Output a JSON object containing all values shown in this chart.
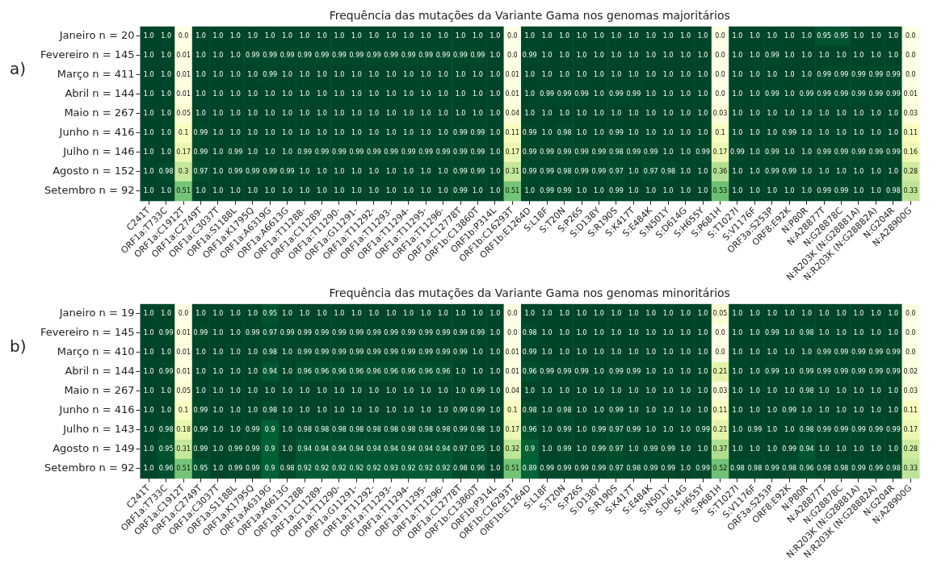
{
  "chart_data": [
    {
      "type": "heatmap",
      "title": "Frequência das mutações da Variante Gama nos genomas majoritários",
      "annotations": [
        "a)"
      ],
      "categories": [
        "C241T",
        "ORF1a:T733C",
        "ORF1a:C1912T",
        "ORF1a:C2749T",
        "ORF1a:C3037T",
        "ORF1a:S1188L",
        "ORF1a:K1795Q",
        "ORF1a:A6319G",
        "ORF1a:A6613G",
        "ORF1a:T11288-",
        "ORF1a:C11289-",
        "ORF1a:T11290-",
        "ORF1a:G11291-",
        "ORF1a:T11292-",
        "ORF1a:T11293-",
        "ORF1a:T11294-",
        "ORF1a:T11295-",
        "ORF1a:T11296-",
        "ORF1a:C12778T",
        "ORF1b:C13860T",
        "ORF1b:P314L",
        "ORF1b:C16293T",
        "ORF1b:E1264D",
        "S:L18F",
        "S:T20N",
        "S:P26S",
        "S:D138Y",
        "S:R190S",
        "S:K417T",
        "S:E484K",
        "S:N501Y",
        "S:D614G",
        "S:H655Y",
        "S:P681H",
        "S:T1027I",
        "S:V1176F",
        "ORF3a:S253P",
        "ORF8:E92K",
        "N:P80R",
        "N:A28877T",
        "N:G28878C",
        "N:R203K (N:G28881A)",
        "N:R203K (N:G28882A)",
        "N:G204R",
        "N:A28900G"
      ],
      "y_categories": [
        "Janeiro n = 20",
        "Fevereiro n = 145",
        "Março n = 411",
        "Abril n = 144",
        "Maio n = 267",
        "Junho n = 416",
        "Julho n = 146",
        "Agosto n = 152",
        "Setembro n = 92"
      ],
      "cells": [
        [
          1,
          1,
          0,
          1,
          1,
          1,
          1,
          1,
          1,
          1,
          1,
          1,
          1,
          1,
          1,
          1,
          1,
          1,
          1,
          1,
          1,
          0,
          1,
          1,
          1,
          1,
          1,
          1,
          1,
          1,
          1,
          1,
          1,
          0,
          1,
          1,
          1,
          1,
          1,
          0.95,
          0.95,
          1,
          1,
          1,
          0
        ],
        [
          1,
          1,
          0.01,
          1,
          1,
          1,
          0.99,
          0.99,
          0.99,
          0.99,
          0.99,
          0.99,
          0.99,
          0.99,
          0.99,
          0.99,
          0.99,
          0.99,
          0.99,
          0.99,
          1,
          0,
          0.99,
          1,
          1,
          1,
          1,
          1,
          1,
          1,
          1,
          1,
          1,
          0,
          1,
          1,
          0.99,
          1,
          1,
          1,
          1,
          1,
          1,
          1,
          0
        ],
        [
          1,
          1,
          0.01,
          1,
          1,
          1,
          1,
          0.99,
          1,
          1,
          1,
          1,
          1,
          1,
          1,
          1,
          1,
          1,
          1,
          1,
          1,
          0.01,
          1,
          1,
          1,
          1,
          1,
          1,
          1,
          1,
          1,
          1,
          1,
          0,
          1,
          1,
          1,
          1,
          1,
          0.99,
          0.99,
          0.99,
          0.99,
          0.99,
          0
        ],
        [
          1,
          1,
          0.01,
          1,
          1,
          1,
          1,
          1,
          1,
          1,
          1,
          1,
          1,
          1,
          1,
          1,
          1,
          1,
          1,
          1,
          1,
          0.01,
          1,
          0.99,
          0.99,
          0.99,
          1,
          0.99,
          0.99,
          1,
          1,
          1,
          1,
          0,
          1,
          1,
          0.99,
          1,
          0.99,
          0.99,
          0.99,
          0.99,
          0.99,
          0.99,
          0.01
        ],
        [
          1,
          1,
          0.05,
          1,
          1,
          1,
          1,
          1,
          1,
          1,
          1,
          1,
          1,
          1,
          1,
          1,
          1,
          1,
          1,
          1,
          1,
          0.04,
          1,
          1,
          1,
          1,
          1,
          1,
          1,
          1,
          1,
          1,
          1,
          0.03,
          1,
          1,
          1,
          1,
          1,
          1,
          1,
          1,
          1,
          1,
          0.03
        ],
        [
          1,
          1,
          0.1,
          0.99,
          1,
          1,
          1,
          1,
          1,
          1,
          1,
          1,
          1,
          1,
          1,
          1,
          1,
          1,
          0.99,
          0.99,
          1,
          0.11,
          0.99,
          1,
          0.98,
          1,
          1,
          0.99,
          1,
          1,
          1,
          1,
          1,
          0.1,
          1,
          1,
          1,
          0.99,
          1,
          1,
          1,
          1,
          1,
          1,
          0.11
        ],
        [
          1,
          1,
          0.17,
          0.99,
          1,
          0.99,
          1,
          1,
          1,
          0.99,
          0.99,
          0.99,
          0.99,
          0.99,
          0.99,
          0.99,
          0.99,
          0.99,
          0.99,
          0.99,
          1,
          0.17,
          0.99,
          0.99,
          0.99,
          0.99,
          0.99,
          0.98,
          0.99,
          0.99,
          1,
          1,
          0.99,
          0.17,
          0.99,
          1,
          0.99,
          1,
          1,
          0.99,
          0.99,
          0.99,
          0.99,
          0.99,
          0.16
        ],
        [
          1,
          0.98,
          0.3,
          0.97,
          1,
          0.99,
          0.99,
          0.99,
          0.99,
          1,
          1,
          1,
          1,
          1,
          1,
          1,
          1,
          1,
          0.99,
          0.99,
          1,
          0.31,
          0.99,
          0.99,
          0.98,
          0.99,
          0.99,
          0.97,
          1,
          0.97,
          0.98,
          1,
          1,
          0.36,
          1,
          1,
          0.99,
          0.99,
          1,
          1,
          1,
          1,
          1,
          1,
          0.28
        ],
        [
          1,
          1,
          0.51,
          1,
          1,
          1,
          1,
          1,
          1,
          1,
          1,
          1,
          1,
          1,
          1,
          1,
          1,
          1,
          0.99,
          1,
          1,
          0.51,
          1,
          0.99,
          0.99,
          1,
          1,
          0.99,
          1,
          1,
          1,
          1,
          1,
          0.53,
          1,
          1,
          1,
          1,
          1,
          0.99,
          0.99,
          1,
          1,
          0.98,
          0.33
        ]
      ],
      "cell_labels": [
        [
          "1.0",
          "1.0",
          "0.0",
          "1.0",
          "1.0",
          "1.0",
          "1.0",
          "1.0",
          "1.0",
          "1.0",
          "1.0",
          "1.0",
          "1.0",
          "1.0",
          "1.0",
          "1.0",
          "1.0",
          "1.0",
          "1.0",
          "1.0",
          "1.0",
          "0.0",
          "1.0",
          "1.0",
          "1.0",
          "1.0",
          "1.0",
          "1.0",
          "1.0",
          "1.0",
          "1.0",
          "1.0",
          "1.0",
          "0.0",
          "1.0",
          "1.0",
          "1.0",
          "1.0",
          "1.0",
          "0.95",
          "0.95",
          "1.0",
          "1.0",
          "1.0",
          "0.0"
        ],
        [
          "1.0",
          "1.0",
          "0.01",
          "1.0",
          "1.0",
          "1.0",
          "0.99",
          "0.99",
          "0.99",
          "0.99",
          "0.99",
          "0.99",
          "0.99",
          "0.99",
          "0.99",
          "0.99",
          "0.99",
          "0.99",
          "0.99",
          "0.99",
          "1.0",
          "0.0",
          "0.99",
          "1.0",
          "1.0",
          "1.0",
          "1.0",
          "1.0",
          "1.0",
          "1.0",
          "1.0",
          "1.0",
          "1.0",
          "0.0",
          "1.0",
          "1.0",
          "0.99",
          "1.0",
          "1.0",
          "1.0",
          "1.0",
          "1.0",
          "1.0",
          "1.0",
          "0.0"
        ],
        [
          "1.0",
          "1.0",
          "0.01",
          "1.0",
          "1.0",
          "1.0",
          "1.0",
          "0.99",
          "1.0",
          "1.0",
          "1.0",
          "1.0",
          "1.0",
          "1.0",
          "1.0",
          "1.0",
          "1.0",
          "1.0",
          "1.0",
          "1.0",
          "1.0",
          "0.01",
          "1.0",
          "1.0",
          "1.0",
          "1.0",
          "1.0",
          "1.0",
          "1.0",
          "1.0",
          "1.0",
          "1.0",
          "1.0",
          "0.0",
          "1.0",
          "1.0",
          "1.0",
          "1.0",
          "1.0",
          "0.99",
          "0.99",
          "0.99",
          "0.99",
          "0.99",
          "0.0"
        ],
        [
          "1.0",
          "1.0",
          "0.01",
          "1.0",
          "1.0",
          "1.0",
          "1.0",
          "1.0",
          "1.0",
          "1.0",
          "1.0",
          "1.0",
          "1.0",
          "1.0",
          "1.0",
          "1.0",
          "1.0",
          "1.0",
          "1.0",
          "1.0",
          "1.0",
          "0.01",
          "1.0",
          "0.99",
          "0.99",
          "0.99",
          "1.0",
          "0.99",
          "0.99",
          "1.0",
          "1.0",
          "1.0",
          "1.0",
          "0.0",
          "1.0",
          "1.0",
          "0.99",
          "1.0",
          "0.99",
          "0.99",
          "0.99",
          "0.99",
          "0.99",
          "0.99",
          "0.01"
        ],
        [
          "1.0",
          "1.0",
          "0.05",
          "1.0",
          "1.0",
          "1.0",
          "1.0",
          "1.0",
          "1.0",
          "1.0",
          "1.0",
          "1.0",
          "1.0",
          "1.0",
          "1.0",
          "1.0",
          "1.0",
          "1.0",
          "1.0",
          "1.0",
          "1.0",
          "0.04",
          "1.0",
          "1.0",
          "1.0",
          "1.0",
          "1.0",
          "1.0",
          "1.0",
          "1.0",
          "1.0",
          "1.0",
          "1.0",
          "0.03",
          "1.0",
          "1.0",
          "1.0",
          "1.0",
          "1.0",
          "1.0",
          "1.0",
          "1.0",
          "1.0",
          "1.0",
          "0.03"
        ],
        [
          "1.0",
          "1.0",
          "0.1",
          "0.99",
          "1.0",
          "1.0",
          "1.0",
          "1.0",
          "1.0",
          "1.0",
          "1.0",
          "1.0",
          "1.0",
          "1.0",
          "1.0",
          "1.0",
          "1.0",
          "1.0",
          "0.99",
          "0.99",
          "1.0",
          "0.11",
          "0.99",
          "1.0",
          "0.98",
          "1.0",
          "1.0",
          "0.99",
          "1.0",
          "1.0",
          "1.0",
          "1.0",
          "1.0",
          "0.1",
          "1.0",
          "1.0",
          "1.0",
          "0.99",
          "1.0",
          "1.0",
          "1.0",
          "1.0",
          "1.0",
          "1.0",
          "0.11"
        ],
        [
          "1.0",
          "1.0",
          "0.17",
          "0.99",
          "1.0",
          "0.99",
          "1.0",
          "1.0",
          "1.0",
          "0.99",
          "0.99",
          "0.99",
          "0.99",
          "0.99",
          "0.99",
          "0.99",
          "0.99",
          "0.99",
          "0.99",
          "0.99",
          "1.0",
          "0.17",
          "0.99",
          "0.99",
          "0.99",
          "0.99",
          "0.99",
          "0.98",
          "0.99",
          "0.99",
          "1.0",
          "1.0",
          "0.99",
          "0.17",
          "0.99",
          "1.0",
          "0.99",
          "1.0",
          "1.0",
          "0.99",
          "0.99",
          "0.99",
          "0.99",
          "0.99",
          "0.16"
        ],
        [
          "1.0",
          "0.98",
          "0.3",
          "0.97",
          "1.0",
          "0.99",
          "0.99",
          "0.99",
          "0.99",
          "1.0",
          "1.0",
          "1.0",
          "1.0",
          "1.0",
          "1.0",
          "1.0",
          "1.0",
          "1.0",
          "0.99",
          "0.99",
          "1.0",
          "0.31",
          "0.99",
          "0.99",
          "0.98",
          "0.99",
          "0.99",
          "0.97",
          "1.0",
          "0.97",
          "0.98",
          "1.0",
          "1.0",
          "0.36",
          "1.0",
          "1.0",
          "0.99",
          "0.99",
          "1.0",
          "1.0",
          "1.0",
          "1.0",
          "1.0",
          "1.0",
          "0.28"
        ],
        [
          "1.0",
          "1.0",
          "0.51",
          "1.0",
          "1.0",
          "1.0",
          "1.0",
          "1.0",
          "1.0",
          "1.0",
          "1.0",
          "1.0",
          "1.0",
          "1.0",
          "1.0",
          "1.0",
          "1.0",
          "1.0",
          "0.99",
          "1.0",
          "1.0",
          "0.51",
          "1.0",
          "0.99",
          "0.99",
          "1.0",
          "1.0",
          "0.99",
          "1.0",
          "1.0",
          "1.0",
          "1.0",
          "1.0",
          "0.53",
          "1.0",
          "1.0",
          "1.0",
          "1.0",
          "1.0",
          "0.99",
          "0.99",
          "1.0",
          "1.0",
          "0.98",
          "0.33"
        ]
      ]
    },
    {
      "type": "heatmap",
      "title": "Frequência das mutações da Variante Gama nos genomas minoritários",
      "annotations": [
        "b)"
      ],
      "categories": [
        "C241T",
        "ORF1a:T733C",
        "ORF1a:C1912T",
        "ORF1a:C2749T",
        "ORF1a:C3037T",
        "ORF1a:S1188L",
        "ORF1a:K1795Q",
        "ORF1a:A6319G",
        "ORF1a:A6613G",
        "ORF1a:T11288-",
        "ORF1a:C11289-",
        "ORF1a:T11290-",
        "ORF1a:G11291-",
        "ORF1a:T11292-",
        "ORF1a:T11293-",
        "ORF1a:T11294-",
        "ORF1a:T11295-",
        "ORF1a:T11296-",
        "ORF1a:C12778T",
        "ORF1b:C13860T",
        "ORF1b:P314L",
        "ORF1b:C16293T",
        "ORF1b:E1264D",
        "S:L18F",
        "S:T20N",
        "S:P26S",
        "S:D138Y",
        "S:R190S",
        "S:K417T",
        "S:E484K",
        "S:N501Y",
        "S:D614G",
        "S:H655Y",
        "S:P681H",
        "S:T1027I",
        "S:V1176F",
        "ORF3a:S253P",
        "ORF8:E92K",
        "N:P80R",
        "N:A28877T",
        "N:G28878C",
        "N:R203K (N:G28881A)",
        "N:R203K (N:G28882A)",
        "N:G204R",
        "N:A28900G"
      ],
      "y_categories": [
        "Janeiro n = 19",
        "Fevereiro n = 145",
        "Março n = 410",
        "Abril n = 144",
        "Maio n = 267",
        "Junho n = 416",
        "Julho n = 143",
        "Agosto n = 149",
        "Setembro n = 92"
      ],
      "cells": [
        [
          1,
          1,
          0,
          1,
          1,
          1,
          1,
          0.95,
          1,
          1,
          1,
          1,
          1,
          1,
          1,
          1,
          1,
          1,
          1,
          1,
          1,
          0,
          1,
          1,
          1,
          1,
          1,
          1,
          1,
          1,
          1,
          1,
          1,
          0.05,
          1,
          1,
          1,
          1,
          1,
          1,
          1,
          1,
          1,
          1,
          0
        ],
        [
          1,
          0.99,
          0.01,
          0.99,
          1,
          1,
          0.99,
          0.97,
          0.99,
          0.99,
          0.99,
          0.99,
          0.99,
          0.99,
          0.99,
          0.99,
          0.99,
          0.99,
          0.99,
          0.99,
          1,
          0,
          0.98,
          1,
          1,
          1,
          1,
          1,
          1,
          1,
          1,
          1,
          1,
          0,
          1,
          1,
          0.99,
          1,
          0.98,
          1,
          1,
          1,
          1,
          1,
          0
        ],
        [
          1,
          1,
          0.01,
          1,
          1,
          1,
          1,
          0.98,
          1,
          0.99,
          0.99,
          0.99,
          0.99,
          0.99,
          0.99,
          0.99,
          0.99,
          0.99,
          0.99,
          1,
          1,
          0.01,
          0.99,
          1,
          1,
          1,
          1,
          1,
          1,
          1,
          1,
          1,
          1,
          0,
          1,
          1,
          1,
          1,
          1,
          0.99,
          0.99,
          0.99,
          0.99,
          0.99,
          0
        ],
        [
          1,
          0.99,
          0.01,
          1,
          1,
          1,
          1,
          0.94,
          1,
          0.96,
          0.96,
          0.96,
          0.96,
          0.96,
          0.96,
          0.96,
          0.96,
          0.96,
          1,
          1,
          1,
          0.01,
          0.96,
          0.99,
          0.99,
          0.99,
          1,
          0.99,
          0.99,
          1,
          1,
          1,
          1,
          0.21,
          1,
          1,
          0.99,
          1,
          0.99,
          0.99,
          0.99,
          0.99,
          0.99,
          0.99,
          0.02
        ],
        [
          1,
          1,
          0.05,
          1,
          1,
          1,
          1,
          1,
          1,
          1,
          1,
          1,
          1,
          1,
          1,
          1,
          1,
          1,
          1,
          0.99,
          1,
          0.04,
          1,
          1,
          1,
          1,
          1,
          1,
          1,
          1,
          1,
          1,
          1,
          0.03,
          1,
          1,
          1,
          1,
          0.98,
          1,
          1,
          1,
          1,
          1,
          0.03
        ],
        [
          1,
          1,
          0.1,
          0.99,
          1,
          1,
          1,
          0.98,
          1,
          1,
          1,
          1,
          1,
          1,
          1,
          1,
          1,
          1,
          0.99,
          0.99,
          1,
          0.1,
          0.98,
          1,
          0.98,
          1,
          1,
          0.99,
          1,
          1,
          1,
          1,
          1,
          0.11,
          1,
          1,
          1,
          0.99,
          1,
          1,
          1,
          1,
          1,
          1,
          0.11
        ],
        [
          1,
          0.98,
          0.18,
          0.99,
          1,
          1,
          0.99,
          0.9,
          1,
          0.98,
          0.98,
          0.98,
          0.98,
          0.98,
          0.98,
          0.98,
          0.98,
          0.98,
          0.99,
          0.98,
          1,
          0.17,
          0.96,
          1,
          0.99,
          1,
          0.99,
          0.97,
          0.99,
          1,
          1,
          1,
          0.99,
          0.21,
          1,
          0.99,
          1,
          1,
          0.98,
          0.99,
          0.99,
          0.99,
          0.99,
          0.99,
          0.17
        ],
        [
          1,
          0.95,
          0.31,
          0.99,
          1,
          0.99,
          0.99,
          0.9,
          1,
          0.94,
          0.94,
          0.94,
          0.94,
          0.94,
          0.94,
          0.94,
          0.94,
          0.94,
          0.97,
          0.95,
          1,
          0.32,
          0.9,
          1,
          0.99,
          1,
          0.99,
          0.97,
          1,
          0.99,
          0.99,
          1,
          1,
          0.37,
          1,
          1,
          1,
          0.99,
          0.94,
          1,
          1,
          1,
          1,
          1,
          0.28
        ],
        [
          1,
          0.96,
          0.51,
          0.95,
          1,
          0.99,
          0.99,
          0.9,
          0.98,
          0.92,
          0.92,
          0.92,
          0.92,
          0.92,
          0.93,
          0.92,
          0.92,
          0.92,
          0.98,
          0.96,
          1,
          0.51,
          0.89,
          0.99,
          0.99,
          0.99,
          0.99,
          0.97,
          0.98,
          0.99,
          0.99,
          1,
          0.99,
          0.52,
          0.98,
          0.98,
          0.99,
          0.98,
          0.96,
          0.98,
          0.98,
          0.99,
          0.99,
          0.98,
          0.33
        ]
      ],
      "cell_labels": [
        [
          "1.0",
          "1.0",
          "0.0",
          "1.0",
          "1.0",
          "1.0",
          "1.0",
          "0.95",
          "1.0",
          "1.0",
          "1.0",
          "1.0",
          "1.0",
          "1.0",
          "1.0",
          "1.0",
          "1.0",
          "1.0",
          "1.0",
          "1.0",
          "1.0",
          "0.0",
          "1.0",
          "1.0",
          "1.0",
          "1.0",
          "1.0",
          "1.0",
          "1.0",
          "1.0",
          "1.0",
          "1.0",
          "1.0",
          "0.05",
          "1.0",
          "1.0",
          "1.0",
          "1.0",
          "1.0",
          "1.0",
          "1.0",
          "1.0",
          "1.0",
          "1.0",
          "0.0"
        ],
        [
          "1.0",
          "0.99",
          "0.01",
          "0.99",
          "1.0",
          "1.0",
          "0.99",
          "0.97",
          "0.99",
          "0.99",
          "0.99",
          "0.99",
          "0.99",
          "0.99",
          "0.99",
          "0.99",
          "0.99",
          "0.99",
          "0.99",
          "0.99",
          "1.0",
          "0.0",
          "0.98",
          "1.0",
          "1.0",
          "1.0",
          "1.0",
          "1.0",
          "1.0",
          "1.0",
          "1.0",
          "1.0",
          "1.0",
          "0.0",
          "1.0",
          "1.0",
          "0.99",
          "1.0",
          "0.98",
          "1.0",
          "1.0",
          "1.0",
          "1.0",
          "1.0",
          "0.0"
        ],
        [
          "1.0",
          "1.0",
          "0.01",
          "1.0",
          "1.0",
          "1.0",
          "1.0",
          "0.98",
          "1.0",
          "0.99",
          "0.99",
          "0.99",
          "0.99",
          "0.99",
          "0.99",
          "0.99",
          "0.99",
          "0.99",
          "0.99",
          "1.0",
          "1.0",
          "0.01",
          "0.99",
          "1.0",
          "1.0",
          "1.0",
          "1.0",
          "1.0",
          "1.0",
          "1.0",
          "1.0",
          "1.0",
          "1.0",
          "0.0",
          "1.0",
          "1.0",
          "1.0",
          "1.0",
          "1.0",
          "0.99",
          "0.99",
          "0.99",
          "0.99",
          "0.99",
          "0.0"
        ],
        [
          "1.0",
          "0.99",
          "0.01",
          "1.0",
          "1.0",
          "1.0",
          "1.0",
          "0.94",
          "1.0",
          "0.96",
          "0.96",
          "0.96",
          "0.96",
          "0.96",
          "0.96",
          "0.96",
          "0.96",
          "0.96",
          "1.0",
          "1.0",
          "1.0",
          "0.01",
          "0.96",
          "0.99",
          "0.99",
          "0.99",
          "1.0",
          "0.99",
          "0.99",
          "1.0",
          "1.0",
          "1.0",
          "1.0",
          "0.21",
          "1.0",
          "1.0",
          "0.99",
          "1.0",
          "0.99",
          "0.99",
          "0.99",
          "0.99",
          "0.99",
          "0.99",
          "0.02"
        ],
        [
          "1.0",
          "1.0",
          "0.05",
          "1.0",
          "1.0",
          "1.0",
          "1.0",
          "1.0",
          "1.0",
          "1.0",
          "1.0",
          "1.0",
          "1.0",
          "1.0",
          "1.0",
          "1.0",
          "1.0",
          "1.0",
          "1.0",
          "0.99",
          "1.0",
          "0.04",
          "1.0",
          "1.0",
          "1.0",
          "1.0",
          "1.0",
          "1.0",
          "1.0",
          "1.0",
          "1.0",
          "1.0",
          "1.0",
          "0.03",
          "1.0",
          "1.0",
          "1.0",
          "1.0",
          "0.98",
          "1.0",
          "1.0",
          "1.0",
          "1.0",
          "1.0",
          "0.03"
        ],
        [
          "1.0",
          "1.0",
          "0.1",
          "0.99",
          "1.0",
          "1.0",
          "1.0",
          "0.98",
          "1.0",
          "1.0",
          "1.0",
          "1.0",
          "1.0",
          "1.0",
          "1.0",
          "1.0",
          "1.0",
          "1.0",
          "0.99",
          "0.99",
          "1.0",
          "0.1",
          "0.98",
          "1.0",
          "0.98",
          "1.0",
          "1.0",
          "0.99",
          "1.0",
          "1.0",
          "1.0",
          "1.0",
          "1.0",
          "0.11",
          "1.0",
          "1.0",
          "1.0",
          "0.99",
          "1.0",
          "1.0",
          "1.0",
          "1.0",
          "1.0",
          "1.0",
          "0.11"
        ],
        [
          "1.0",
          "0.98",
          "0.18",
          "0.99",
          "1.0",
          "1.0",
          "0.99",
          "0.9",
          "1.0",
          "0.98",
          "0.98",
          "0.98",
          "0.98",
          "0.98",
          "0.98",
          "0.98",
          "0.98",
          "0.98",
          "0.99",
          "0.98",
          "1.0",
          "0.17",
          "0.96",
          "1.0",
          "0.99",
          "1.0",
          "0.99",
          "0.97",
          "0.99",
          "1.0",
          "1.0",
          "1.0",
          "0.99",
          "0.21",
          "1.0",
          "0.99",
          "1.0",
          "1.0",
          "0.98",
          "0.99",
          "0.99",
          "0.99",
          "0.99",
          "0.99",
          "0.17"
        ],
        [
          "1.0",
          "0.95",
          "0.31",
          "0.99",
          "1.0",
          "0.99",
          "0.99",
          "0.9",
          "1.0",
          "0.94",
          "0.94",
          "0.94",
          "0.94",
          "0.94",
          "0.94",
          "0.94",
          "0.94",
          "0.94",
          "0.97",
          "0.95",
          "1.0",
          "0.32",
          "0.9",
          "1.0",
          "0.99",
          "1.0",
          "0.99",
          "0.97",
          "1.0",
          "0.99",
          "0.99",
          "1.0",
          "1.0",
          "0.37",
          "1.0",
          "1.0",
          "1.0",
          "0.99",
          "0.94",
          "1.0",
          "1.0",
          "1.0",
          "1.0",
          "1.0",
          "0.28"
        ],
        [
          "1.0",
          "0.96",
          "0.51",
          "0.95",
          "1.0",
          "0.99",
          "0.99",
          "0.9",
          "0.98",
          "0.92",
          "0.92",
          "0.92",
          "0.92",
          "0.92",
          "0.93",
          "0.92",
          "0.92",
          "0.92",
          "0.98",
          "0.96",
          "1.0",
          "0.51",
          "0.89",
          "0.99",
          "0.99",
          "0.99",
          "0.99",
          "0.97",
          "0.98",
          "0.99",
          "0.99",
          "1.0",
          "0.99",
          "0.52",
          "0.98",
          "0.98",
          "0.99",
          "0.98",
          "0.96",
          "0.98",
          "0.98",
          "0.99",
          "0.99",
          "0.98",
          "0.33"
        ]
      ]
    }
  ]
}
